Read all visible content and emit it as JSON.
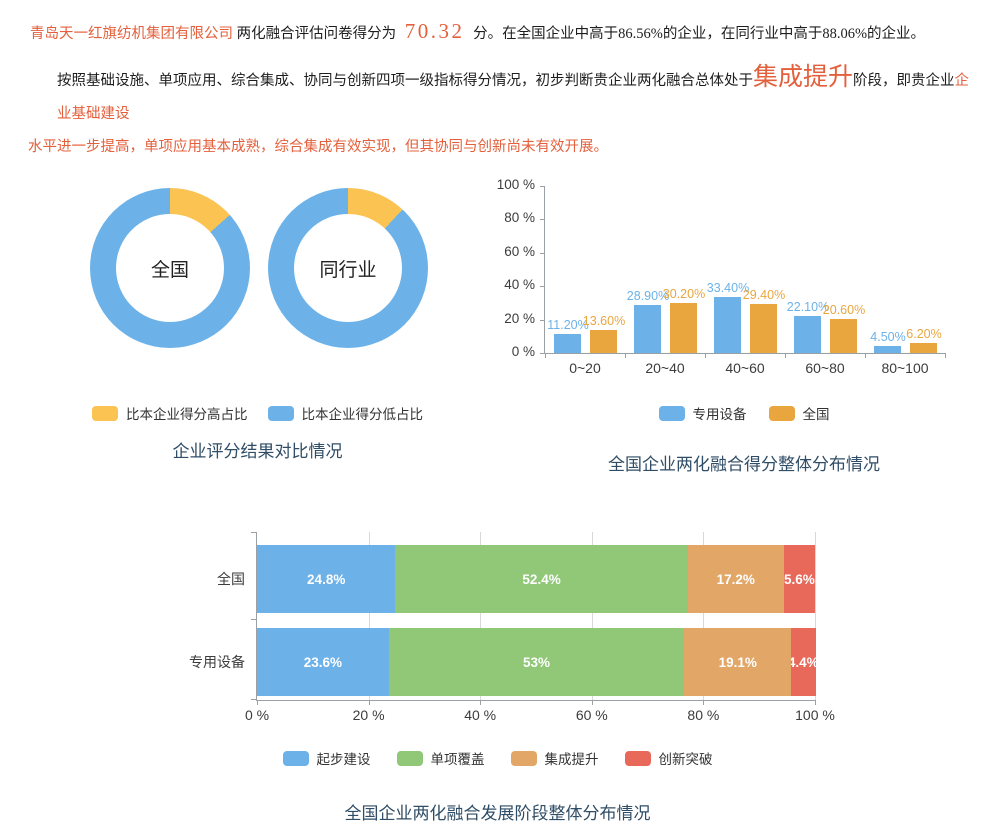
{
  "palette": {
    "blue": "#6CB2E8",
    "yellow": "#FBC452",
    "orange": "#E9A63F",
    "green": "#90C878",
    "stack_orange": "#E2A667",
    "red": "#E8695A",
    "accent": "#E4603C",
    "title_color": "#2F4D66"
  },
  "header": {
    "company": "青岛天一红旗纺机集团有限公司",
    "score_label": "两化融合评估问卷得分为",
    "score": "70.32",
    "score_suffix": "分。在全国企业中高于86.56%的企业，在同行业中高于88.06%的企业。"
  },
  "assessment": {
    "intro": "按照基础设施、单项应用、综合集成、协同与创新四项一级指标得分情况，初步判断贵企业两化融合总体处于",
    "stage": "集成提升",
    "middle": "阶段，即贵企业",
    "detail_line1": "企业基础建设",
    "detail_line2": "水平进一步提高，单项应用基本成熟，综合集成有效实现，但其协同与创新尚未有效开展。"
  },
  "chart_data": [
    {
      "type": "pie",
      "subtype": "donut-pair",
      "title": "企业评分结果对比情况",
      "legend_position": "bottom",
      "legend": [
        {
          "name": "比本企业得分高占比",
          "color": "#FBC452"
        },
        {
          "name": "比本企业得分低占比",
          "color": "#6CB2E8"
        }
      ],
      "donuts": [
        {
          "label": "全国",
          "slices": [
            {
              "name": "比本企业得分高占比",
              "value": 13.44
            },
            {
              "name": "比本企业得分低占比",
              "value": 86.56
            }
          ]
        },
        {
          "label": "同行业",
          "slices": [
            {
              "name": "比本企业得分高占比",
              "value": 11.94
            },
            {
              "name": "比本企业得分低占比",
              "value": 88.06
            }
          ]
        }
      ]
    },
    {
      "type": "bar",
      "title": "全国企业两化融合得分整体分布情况",
      "categories": [
        "0~20",
        "20~40",
        "40~60",
        "60~80",
        "80~100"
      ],
      "series": [
        {
          "name": "专用设备",
          "color": "#6CB2E8",
          "values": [
            11.2,
            28.9,
            33.4,
            22.1,
            4.5
          ],
          "labels": [
            "11.20%",
            "28.90%",
            "33.40%",
            "22.10%",
            "4.50%"
          ]
        },
        {
          "name": "全国",
          "color": "#E9A63F",
          "values": [
            13.6,
            30.2,
            29.4,
            20.6,
            6.2
          ],
          "labels": [
            "13.60%",
            "30.20%",
            "29.40%",
            "20.60%",
            "6.20%"
          ]
        }
      ],
      "ylim": [
        0,
        100
      ],
      "y_ticks": [
        "100 %",
        "80 %",
        "60 %",
        "40 %",
        "20 %",
        "0 %"
      ],
      "grid": false,
      "legend_position": "bottom"
    },
    {
      "type": "bar",
      "orientation": "horizontal",
      "stacked": true,
      "title": "全国企业两化融合发展阶段整体分布情况",
      "categories": [
        "全国",
        "专用设备"
      ],
      "series": [
        {
          "name": "起步建设",
          "color": "#6CB2E8",
          "values": [
            24.8,
            23.6
          ],
          "labels": [
            "24.8%",
            "23.6%"
          ]
        },
        {
          "name": "单项覆盖",
          "color": "#90C878",
          "values": [
            52.4,
            53
          ],
          "labels": [
            "52.4%",
            "53%"
          ]
        },
        {
          "name": "集成提升",
          "color": "#E2A667",
          "values": [
            17.2,
            19.1
          ],
          "labels": [
            "17.2%",
            "19.1%"
          ]
        },
        {
          "name": "创新突破",
          "color": "#E8695A",
          "values": [
            5.6,
            4.4
          ],
          "labels": [
            "5.6%",
            "4.4%"
          ]
        }
      ],
      "xlim": [
        0,
        100
      ],
      "x_ticks": [
        "0 %",
        "20 %",
        "40 %",
        "60 %",
        "80 %",
        "100 %"
      ],
      "grid": true,
      "legend_position": "bottom"
    }
  ]
}
